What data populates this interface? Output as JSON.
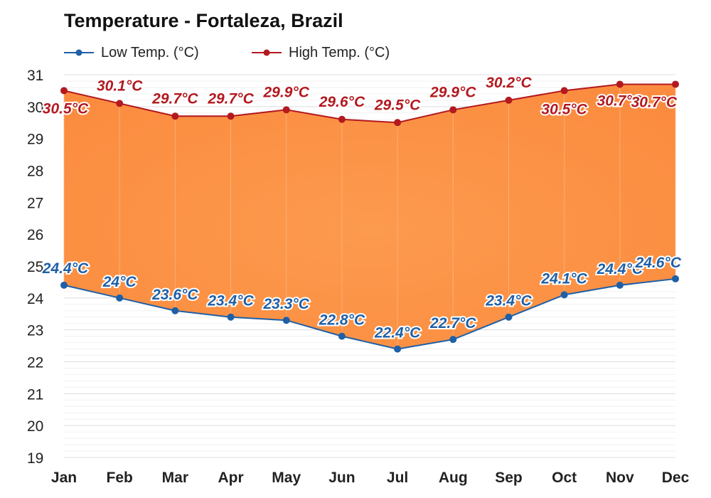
{
  "chart_data": {
    "type": "area",
    "title": "Temperature - Fortaleza, Brazil",
    "categories": [
      "Jan",
      "Feb",
      "Mar",
      "Apr",
      "May",
      "Jun",
      "Jul",
      "Aug",
      "Sep",
      "Oct",
      "Nov",
      "Dec"
    ],
    "series": [
      {
        "name": "Low Temp. (°C)",
        "color": "#1f5fa6",
        "values": [
          24.4,
          24.0,
          23.6,
          23.4,
          23.3,
          22.8,
          22.4,
          22.7,
          23.4,
          24.1,
          24.4,
          24.6
        ],
        "labels": [
          "24.4°C",
          "24°C",
          "23.6°C",
          "23.4°C",
          "23.3°C",
          "22.8°C",
          "22.4°C",
          "22.7°C",
          "23.4°C",
          "24.1°C",
          "24.4°C",
          "24.6°C"
        ]
      },
      {
        "name": "High Temp. (°C)",
        "color": "#b3191f",
        "values": [
          30.5,
          30.1,
          29.7,
          29.7,
          29.9,
          29.6,
          29.5,
          29.9,
          30.2,
          30.5,
          30.7,
          30.7
        ],
        "labels": [
          "30.5°C",
          "30.1°C",
          "29.7°C",
          "29.7°C",
          "29.9°C",
          "29.6°C",
          "29.5°C",
          "29.9°C",
          "30.2°C",
          "30.5°C",
          "30.7°C",
          "30.7°C"
        ]
      }
    ],
    "fill_color": "#fb8c3f",
    "ylim": [
      19,
      31
    ],
    "yticks": [
      "19",
      "20",
      "21",
      "22",
      "23",
      "24",
      "25",
      "26",
      "27",
      "28",
      "29",
      "30",
      "31"
    ],
    "xlabel": "",
    "ylabel": "",
    "grid": true,
    "legend_position": "top-left"
  }
}
